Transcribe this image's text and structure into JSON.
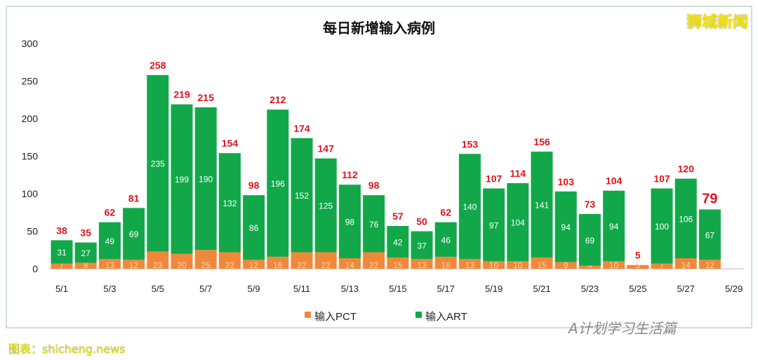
{
  "brand": "狮城新闻",
  "credit": "图表：shicheng.news",
  "wechat": "A计划学习生活篇",
  "chart_data": {
    "type": "bar",
    "stacked": true,
    "title": "每日新增输入病例",
    "categories": [
      "5/1",
      "5/2",
      "5/3",
      "5/4",
      "5/5",
      "5/6",
      "5/7",
      "5/8",
      "5/9",
      "5/10",
      "5/11",
      "5/12",
      "5/13",
      "5/14",
      "5/15",
      "5/16",
      "5/17",
      "5/18",
      "5/19",
      "5/20",
      "5/21",
      "5/22",
      "5/23",
      "5/24",
      "5/25",
      "5/26",
      "5/27",
      "5/28"
    ],
    "x_ticks": [
      "5/1",
      "5/3",
      "5/5",
      "5/7",
      "5/9",
      "5/11",
      "5/13",
      "5/15",
      "5/17",
      "5/19",
      "5/21",
      "5/23",
      "5/25",
      "5/27",
      "5/29"
    ],
    "series": [
      {
        "name": "输入PCT",
        "color": "#f0883a",
        "values": [
          7,
          8,
          13,
          12,
          23,
          20,
          25,
          22,
          12,
          16,
          22,
          22,
          14,
          22,
          15,
          13,
          16,
          13,
          10,
          10,
          15,
          9,
          4,
          10,
          5,
          7,
          14,
          12
        ]
      },
      {
        "name": "输入ART",
        "color": "#12a84a",
        "values": [
          31,
          27,
          49,
          69,
          235,
          199,
          190,
          132,
          86,
          196,
          152,
          125,
          98,
          76,
          42,
          37,
          46,
          140,
          97,
          104,
          141,
          94,
          69,
          94,
          0,
          100,
          106,
          67
        ]
      }
    ],
    "totals": [
      38,
      35,
      62,
      81,
      258,
      219,
      215,
      154,
      98,
      212,
      174,
      147,
      112,
      98,
      57,
      50,
      62,
      153,
      107,
      114,
      156,
      103,
      73,
      104,
      5,
      107,
      120,
      79
    ],
    "total_color": "#e0141e",
    "ylim": [
      0,
      300
    ],
    "yticks": [
      0,
      50,
      100,
      150,
      200,
      250,
      300
    ],
    "grid": false,
    "legend": "bottom"
  }
}
